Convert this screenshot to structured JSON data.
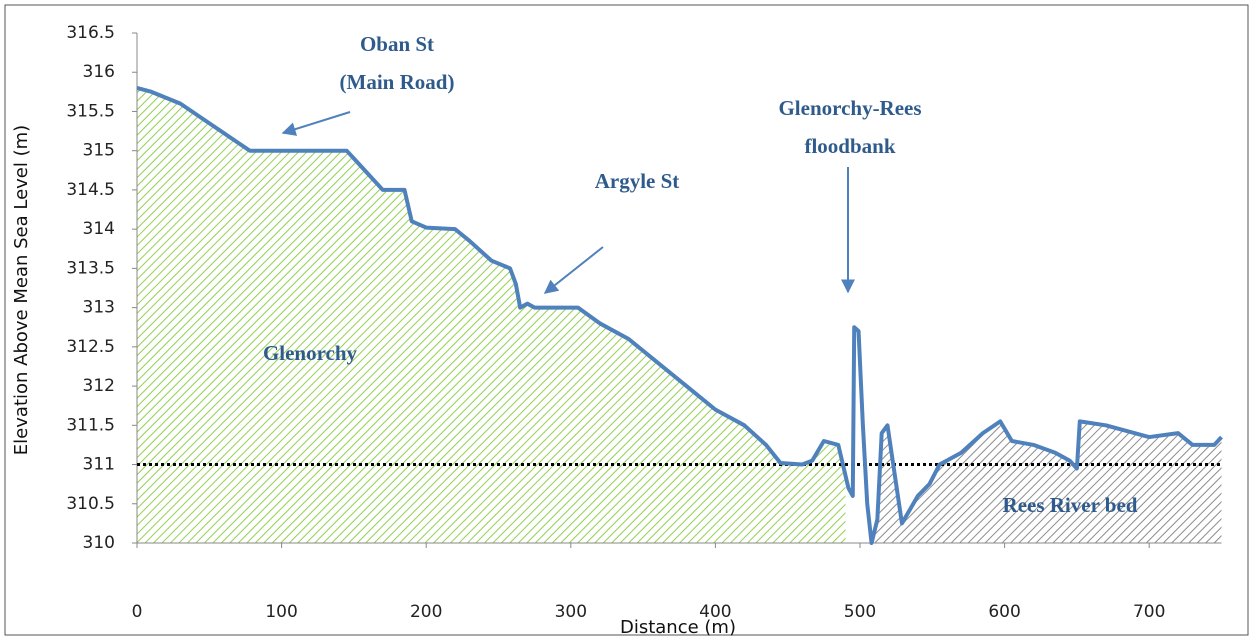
{
  "chart_data": {
    "type": "line",
    "x_label": "Distance (m)",
    "y_label": "Elevation Above Mean Sea Level (m)",
    "x": [
      0,
      10,
      30,
      50,
      70,
      78,
      145,
      150,
      160,
      170,
      185,
      190,
      200,
      220,
      230,
      245,
      258,
      262,
      265,
      270,
      275,
      305,
      320,
      340,
      360,
      380,
      400,
      420,
      435,
      445,
      460,
      467,
      475,
      485,
      492,
      495,
      496,
      499,
      502,
      505,
      508,
      512,
      515,
      519,
      523,
      529,
      540,
      548,
      555,
      560,
      570,
      585,
      597,
      605,
      620,
      635,
      645,
      650,
      652,
      670,
      700,
      720,
      730,
      745,
      750
    ],
    "values": [
      315.8,
      315.75,
      315.6,
      315.35,
      315.1,
      315.0,
      315.0,
      314.9,
      314.7,
      314.5,
      314.5,
      314.1,
      314.02,
      314.0,
      313.85,
      313.6,
      313.5,
      313.3,
      313.0,
      313.05,
      313.0,
      313.0,
      312.8,
      312.6,
      312.3,
      312.0,
      311.7,
      311.5,
      311.25,
      311.02,
      311.0,
      311.05,
      311.3,
      311.25,
      310.7,
      310.6,
      312.75,
      312.7,
      311.5,
      310.5,
      310.0,
      310.3,
      311.4,
      311.5,
      311.0,
      310.25,
      310.6,
      310.75,
      311.0,
      311.05,
      311.15,
      311.4,
      311.55,
      311.3,
      311.25,
      311.15,
      311.05,
      310.95,
      311.55,
      311.5,
      311.35,
      311.4,
      311.25,
      311.25,
      311.35
    ],
    "color": "#4f81bd",
    "xlim": [
      0,
      750
    ],
    "xticks": [
      0,
      100,
      200,
      300,
      400,
      500,
      600,
      700
    ],
    "ylim": [
      310,
      316.5
    ],
    "yticks": [
      310,
      310.5,
      311,
      311.5,
      312,
      312.5,
      313,
      313.5,
      314,
      314.5,
      315,
      315.5,
      316,
      316.5
    ],
    "reference_line": 311,
    "regions": [
      {
        "label": "Glenorchy",
        "x": [
          0,
          490
        ],
        "color": "#92d050"
      },
      {
        "label": "Rees River bed",
        "x": [
          508,
          750
        ],
        "color": "#8c8c8c"
      }
    ],
    "annotations": [
      [
        "Oban St",
        "(Main Road)"
      ],
      [
        "Argyle St"
      ],
      [
        "Glenorchy-Rees",
        "floodbank"
      ]
    ]
  }
}
